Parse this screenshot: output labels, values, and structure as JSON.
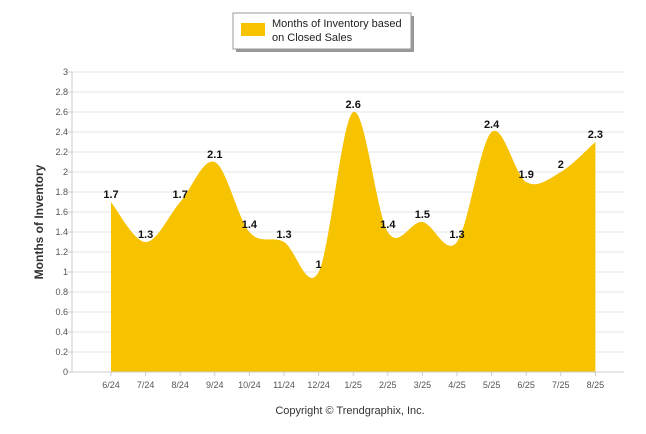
{
  "chart_data": {
    "type": "area",
    "categories": [
      "6/24",
      "7/24",
      "8/24",
      "9/24",
      "10/24",
      "11/24",
      "12/24",
      "1/25",
      "2/25",
      "3/25",
      "4/25",
      "5/25",
      "6/25",
      "7/25",
      "8/25"
    ],
    "series": [
      {
        "name": "Months of Inventory based on Closed Sales",
        "values": [
          1.7,
          1.3,
          1.7,
          2.1,
          1.4,
          1.3,
          1,
          2.6,
          1.4,
          1.5,
          1.3,
          2.4,
          1.9,
          2,
          2.3
        ],
        "labels": [
          "1.7",
          "1.3",
          "1.7",
          "2.1",
          "1.4",
          "1.3",
          "1",
          "2.6",
          "1.4",
          "1.5",
          "1.3",
          "2.4",
          "1.9",
          "2",
          "2.3"
        ]
      }
    ],
    "ylabel": "Months of Inventory",
    "ylim": [
      0,
      3
    ],
    "yticks": [
      0,
      0.2,
      0.4,
      0.6,
      0.8,
      1,
      1.2,
      1.4,
      1.6,
      1.8,
      2,
      2.2,
      2.4,
      2.6,
      2.8,
      3
    ],
    "ytick_labels": [
      "0",
      "0.2",
      "0.4",
      "0.6",
      "0.8",
      "1",
      "1.2",
      "1.4",
      "1.6",
      "1.8",
      "2",
      "2.2",
      "2.4",
      "2.6",
      "2.8",
      "3"
    ],
    "grid": true,
    "legend_position": "top-center",
    "legend_lines": [
      "Months of Inventory based",
      "on Closed Sales"
    ],
    "colors": {
      "fill": "#f7c200",
      "grid": "#e6e6e6",
      "axis": "#cccccc"
    }
  },
  "footer": "Copyright © Trendgraphix, Inc."
}
